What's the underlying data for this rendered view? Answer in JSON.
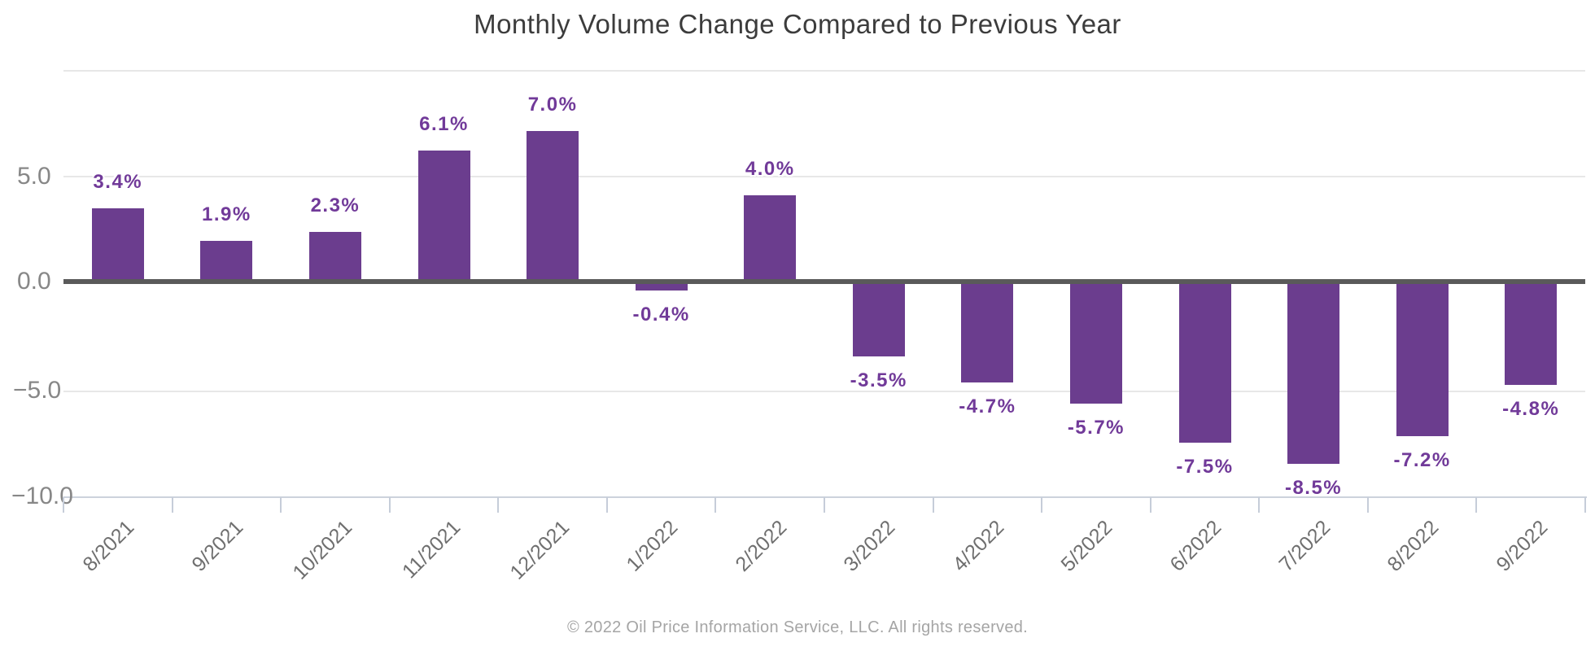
{
  "chart_data": {
    "type": "bar",
    "title": "Monthly Volume Change Compared to Previous Year",
    "categories": [
      "8/2021",
      "9/2021",
      "10/2021",
      "11/2021",
      "12/2021",
      "1/2022",
      "2/2022",
      "3/2022",
      "4/2022",
      "5/2022",
      "6/2022",
      "7/2022",
      "8/2022",
      "9/2022"
    ],
    "values": [
      3.4,
      1.9,
      2.3,
      6.1,
      7.0,
      -0.4,
      4.0,
      -3.5,
      -4.7,
      -5.7,
      -7.5,
      -8.5,
      -7.2,
      -4.8
    ],
    "value_labels": [
      "3.4%",
      "1.9%",
      "2.3%",
      "6.1%",
      "7.0%",
      "-0.4%",
      "4.0%",
      "-3.5%",
      "-4.7%",
      "-5.7%",
      "-7.5%",
      "-8.5%",
      "-7.2%",
      "-4.8%"
    ],
    "xlabel": "",
    "ylabel": "",
    "ylim": [
      -10,
      10
    ],
    "ytick_labels": [
      "5.0",
      "0.0",
      "−5.0",
      "−10.0"
    ],
    "ytick_values": [
      5,
      0,
      -5,
      -10
    ],
    "grid": true,
    "legend_position": "none",
    "bar_color": "#6b3d8e",
    "value_label_color": "#713a99",
    "zero_line_color": "#5a5a5a",
    "gridline_color": "#e7e7e7",
    "axis_line_color": "#ccd2dc",
    "title_color": "#3c3c3c",
    "xtick_text_color": "#6f6f6f",
    "ytick_text_color": "#878787"
  },
  "footer": {
    "copyright": "© 2022 Oil Price Information Service, LLC. All rights reserved."
  }
}
